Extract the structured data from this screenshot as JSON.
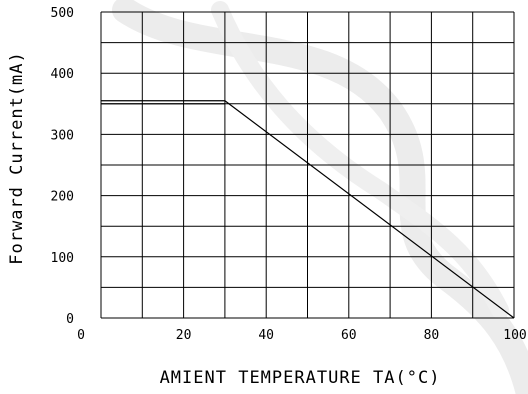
{
  "chart_data": {
    "type": "line",
    "title": "",
    "xlabel": "AMIENT  TEMPERATURE  TA(°C)",
    "ylabel": "Forward Current(mA)",
    "xlim": [
      0,
      100
    ],
    "ylim": [
      0,
      500
    ],
    "x_ticks": [
      "0",
      "20",
      "40",
      "60",
      "80",
      "100"
    ],
    "y_ticks": [
      "0",
      "100",
      "200",
      "300",
      "400",
      "500"
    ],
    "grid": true,
    "series": [
      {
        "x": [
          0,
          30
        ],
        "y": [
          355,
          355
        ]
      },
      {
        "x": [
          0,
          30
        ],
        "y": [
          350,
          350
        ]
      },
      {
        "x": [
          30,
          100
        ],
        "y": [
          355,
          0
        ]
      }
    ]
  },
  "style": {
    "line_color": "#000000",
    "grid_color": "#000000",
    "watermark_color": "#e9e9e9"
  }
}
